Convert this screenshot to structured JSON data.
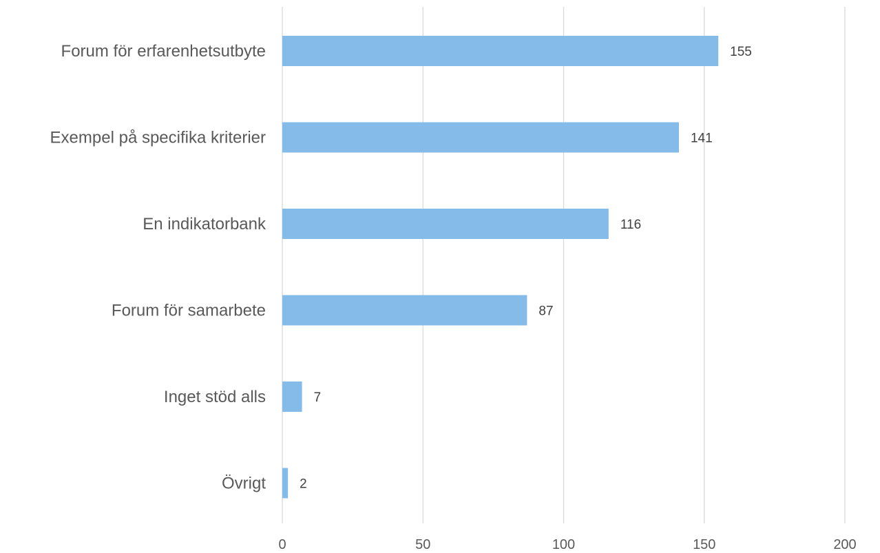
{
  "chart_data": {
    "type": "bar",
    "orientation": "horizontal",
    "categories": [
      "Forum för erfarenhetsutbyte",
      "Exempel på specifika kriterier",
      "En indikatorbank",
      "Forum för samarbete",
      "Inget stöd alls",
      "Övrigt"
    ],
    "values": [
      155,
      141,
      116,
      87,
      7,
      2
    ],
    "xlim": [
      0,
      200
    ],
    "x_ticks": [
      0,
      50,
      100,
      150,
      200
    ],
    "grid": "vertical",
    "data_labels": true,
    "bar_color": "#85bbe8"
  }
}
